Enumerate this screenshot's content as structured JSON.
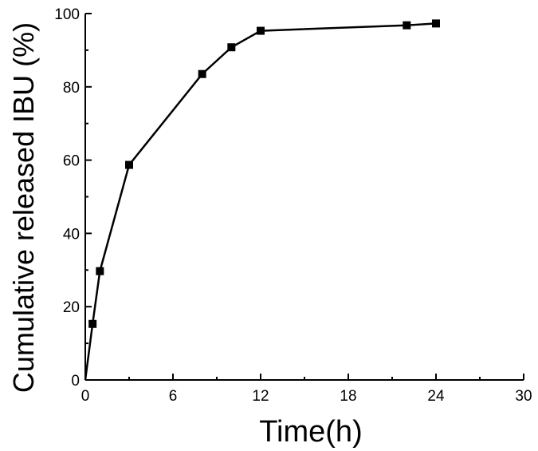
{
  "chart_data": {
    "type": "line",
    "xlabel": "Time(h)",
    "ylabel": "Cumulative released IBU (%)",
    "xlim": [
      0,
      30
    ],
    "ylim": [
      0,
      100
    ],
    "xticks": [
      0,
      6,
      12,
      18,
      24,
      30
    ],
    "yticks": [
      0,
      20,
      40,
      60,
      80,
      100
    ],
    "grid": false,
    "series": [
      {
        "marker": "square",
        "color": "#000000",
        "x": [
          0,
          0.5,
          1,
          3,
          8,
          10,
          12,
          22,
          24
        ],
        "y": [
          0,
          15.3,
          29.7,
          58.7,
          83.5,
          90.8,
          95.3,
          96.8,
          97.3
        ]
      }
    ]
  }
}
